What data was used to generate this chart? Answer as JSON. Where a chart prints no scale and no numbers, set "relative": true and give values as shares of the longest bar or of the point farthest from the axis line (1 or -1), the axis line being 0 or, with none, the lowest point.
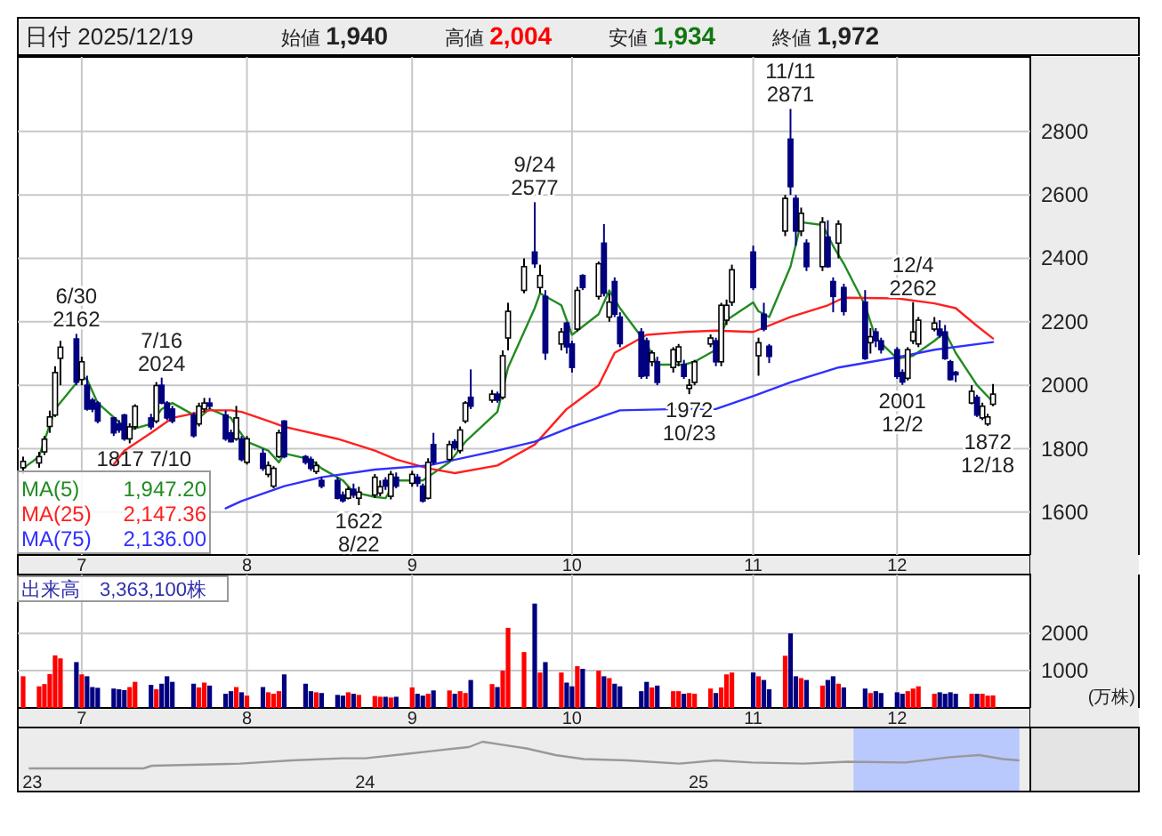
{
  "chart_data": [
    {
      "type": "other",
      "title": "日付 2025/12/19",
      "annotations": [
        "始値 1,940",
        "高値 2,004",
        "安値 1,934",
        "終値 1,972"
      ]
    },
    {
      "type": "candlestick",
      "grid": true,
      "legend": "bottom left",
      "ylim": [
        1465,
        3035
      ],
      "yticks": [
        1600,
        1800,
        2000,
        2200,
        2400,
        2600,
        2800
      ],
      "xlim": [
        "2025-06-19",
        "2025-12-26"
      ],
      "xticks": [
        {
          "value": "2025-07-01",
          "label": "7"
        },
        {
          "value": "2025-08-01",
          "label": "8"
        },
        {
          "value": "2025-09-01",
          "label": "9"
        },
        {
          "value": "2025-10-01",
          "label": "10"
        },
        {
          "value": "2025-11-04",
          "label": "11"
        },
        {
          "value": "2025-12-01",
          "label": "12"
        }
      ],
      "x": [
        "2025-06-20",
        "2025-06-23",
        "2025-06-24",
        "2025-06-25",
        "2025-06-26",
        "2025-06-27",
        "2025-06-30",
        "2025-07-01",
        "2025-07-02",
        "2025-07-03",
        "2025-07-04",
        "2025-07-07",
        "2025-07-08",
        "2025-07-09",
        "2025-07-10",
        "2025-07-11",
        "2025-07-14",
        "2025-07-15",
        "2025-07-16",
        "2025-07-17",
        "2025-07-18",
        "2025-07-22",
        "2025-07-23",
        "2025-07-24",
        "2025-07-25",
        "2025-07-28",
        "2025-07-29",
        "2025-07-30",
        "2025-07-31",
        "2025-08-01",
        "2025-08-04",
        "2025-08-05",
        "2025-08-06",
        "2025-08-07",
        "2025-08-08",
        "2025-08-12",
        "2025-08-13",
        "2025-08-14",
        "2025-08-15",
        "2025-08-18",
        "2025-08-19",
        "2025-08-20",
        "2025-08-21",
        "2025-08-22",
        "2025-08-25",
        "2025-08-26",
        "2025-08-27",
        "2025-08-28",
        "2025-08-29",
        "2025-09-01",
        "2025-09-02",
        "2025-09-03",
        "2025-09-04",
        "2025-09-05",
        "2025-09-08",
        "2025-09-09",
        "2025-09-10",
        "2025-09-11",
        "2025-09-12",
        "2025-09-16",
        "2025-09-17",
        "2025-09-18",
        "2025-09-19",
        "2025-09-22",
        "2025-09-24",
        "2025-09-25",
        "2025-09-26",
        "2025-09-29",
        "2025-09-30",
        "2025-10-01",
        "2025-10-02",
        "2025-10-03",
        "2025-10-06",
        "2025-10-07",
        "2025-10-08",
        "2025-10-09",
        "2025-10-10",
        "2025-10-14",
        "2025-10-15",
        "2025-10-16",
        "2025-10-17",
        "2025-10-20",
        "2025-10-21",
        "2025-10-22",
        "2025-10-23",
        "2025-10-24",
        "2025-10-27",
        "2025-10-28",
        "2025-10-29",
        "2025-10-30",
        "2025-10-31",
        "2025-11-04",
        "2025-11-05",
        "2025-11-06",
        "2025-11-07",
        "2025-11-10",
        "2025-11-11",
        "2025-11-12",
        "2025-11-13",
        "2025-11-14",
        "2025-11-17",
        "2025-11-18",
        "2025-11-19",
        "2025-11-20",
        "2025-11-21",
        "2025-11-25",
        "2025-11-26",
        "2025-11-27",
        "2025-11-28",
        "2025-12-01",
        "2025-12-02",
        "2025-12-03",
        "2025-12-04",
        "2025-12-05",
        "2025-12-08",
        "2025-12-09",
        "2025-12-10",
        "2025-12-11",
        "2025-12-12",
        "2025-12-15",
        "2025-12-16",
        "2025-12-17",
        "2025-12-18",
        "2025-12-19"
      ],
      "ohlc": [
        [
          1740,
          1775,
          1720,
          1760
        ],
        [
          1755,
          1790,
          1740,
          1775
        ],
        [
          1790,
          1840,
          1780,
          1830
        ],
        [
          1870,
          1920,
          1850,
          1900
        ],
        [
          1906,
          2060,
          1900,
          2040
        ],
        [
          2085,
          2140,
          2000,
          2120
        ],
        [
          2146,
          2162,
          2000,
          2010
        ],
        [
          2018,
          2090,
          2000,
          2074
        ],
        [
          2000,
          2030,
          1920,
          1925
        ],
        [
          1953,
          1960,
          1915,
          1925
        ],
        [
          1944,
          1950,
          1880,
          1887
        ],
        [
          1897,
          1900,
          1840,
          1850
        ],
        [
          1878,
          1890,
          1850,
          1859
        ],
        [
          1906,
          1910,
          1825,
          1831
        ],
        [
          1831,
          1880,
          1817,
          1869
        ],
        [
          1869,
          1940,
          1860,
          1934
        ],
        [
          1897,
          1910,
          1860,
          1869
        ],
        [
          1887,
          2010,
          1880,
          1999
        ],
        [
          2000,
          2024,
          1940,
          1944
        ],
        [
          1944,
          1950,
          1890,
          1897
        ],
        [
          1925,
          1935,
          1880,
          1887
        ],
        [
          1906,
          1915,
          1835,
          1841
        ],
        [
          1878,
          1945,
          1870,
          1934
        ],
        [
          1925,
          1960,
          1915,
          1944
        ],
        [
          1944,
          1960,
          1925,
          1934
        ],
        [
          1906,
          1920,
          1825,
          1831
        ],
        [
          1850,
          1860,
          1820,
          1822
        ],
        [
          1831,
          1935,
          1825,
          1897
        ],
        [
          1831,
          1840,
          1760,
          1766
        ],
        [
          1757,
          1840,
          1750,
          1831
        ],
        [
          1785,
          1800,
          1730,
          1738
        ],
        [
          1719,
          1760,
          1710,
          1747
        ],
        [
          1682,
          1745,
          1675,
          1738
        ],
        [
          1775,
          1860,
          1770,
          1850
        ],
        [
          1887,
          1890,
          1770,
          1775
        ],
        [
          1775,
          1780,
          1750,
          1757
        ],
        [
          1766,
          1775,
          1730,
          1738
        ],
        [
          1728,
          1760,
          1720,
          1747
        ],
        [
          1700,
          1710,
          1675,
          1682
        ],
        [
          1700,
          1710,
          1640,
          1644
        ],
        [
          1654,
          1665,
          1630,
          1636
        ],
        [
          1644,
          1680,
          1640,
          1672
        ],
        [
          1672,
          1690,
          1645,
          1654
        ],
        [
          1644,
          1680,
          1622,
          1663
        ],
        [
          1654,
          1720,
          1645,
          1710
        ],
        [
          1660,
          1700,
          1650,
          1680
        ],
        [
          1700,
          1710,
          1670,
          1682
        ],
        [
          1650,
          1730,
          1640,
          1719
        ],
        [
          1710,
          1725,
          1675,
          1682
        ],
        [
          1691,
          1730,
          1680,
          1719
        ],
        [
          1710,
          1720,
          1680,
          1691
        ],
        [
          1682,
          1690,
          1630,
          1635
        ],
        [
          1644,
          1770,
          1640,
          1757
        ],
        [
          1813,
          1850,
          1750,
          1757
        ],
        [
          1766,
          1825,
          1760,
          1813
        ],
        [
          1822,
          1830,
          1795,
          1803
        ],
        [
          1794,
          1870,
          1785,
          1859
        ],
        [
          1887,
          1950,
          1880,
          1944
        ],
        [
          1962,
          2050,
          1925,
          1934
        ],
        [
          1953,
          1985,
          1945,
          1972
        ],
        [
          1972,
          1980,
          1945,
          1953
        ],
        [
          1962,
          2110,
          1955,
          2093
        ],
        [
          2149,
          2260,
          2110,
          2233
        ],
        [
          2299,
          2400,
          2290,
          2374
        ],
        [
          2420,
          2577,
          2370,
          2383
        ],
        [
          2308,
          2380,
          2290,
          2346
        ],
        [
          2280,
          2300,
          2080,
          2102
        ],
        [
          2130,
          2180,
          2110,
          2168
        ],
        [
          2196,
          2200,
          2100,
          2121
        ],
        [
          2130,
          2140,
          2040,
          2056
        ],
        [
          2177,
          2310,
          2170,
          2299
        ],
        [
          2346,
          2350,
          2300,
          2308
        ],
        [
          2280,
          2390,
          2270,
          2383
        ],
        [
          2448,
          2508,
          2280,
          2290
        ],
        [
          2215,
          2290,
          2200,
          2262
        ],
        [
          2327,
          2340,
          2215,
          2224
        ],
        [
          2215,
          2230,
          2120,
          2131
        ],
        [
          2168,
          2180,
          2020,
          2028
        ],
        [
          2140,
          2150,
          2020,
          2030
        ],
        [
          2074,
          2110,
          2060,
          2102
        ],
        [
          2074,
          2090,
          2000,
          2009
        ],
        [
          2056,
          2120,
          2040,
          2112
        ],
        [
          2074,
          2130,
          2060,
          2121
        ],
        [
          2065,
          2080,
          2020,
          2028
        ],
        [
          1990,
          2020,
          1972,
          2000
        ],
        [
          2009,
          2080,
          2000,
          2074
        ],
        [
          2130,
          2160,
          2120,
          2149
        ],
        [
          2140,
          2150,
          2060,
          2074
        ],
        [
          2074,
          2260,
          2060,
          2252
        ],
        [
          2205,
          2270,
          2190,
          2252
        ],
        [
          2262,
          2380,
          2250,
          2364
        ],
        [
          2420,
          2440,
          2300,
          2308
        ],
        [
          2093,
          2150,
          2030,
          2134
        ],
        [
          2224,
          2260,
          2170,
          2177
        ],
        [
          2123,
          2130,
          2070,
          2091
        ],
        [
          2486,
          2600,
          2470,
          2589
        ],
        [
          2776,
          2871,
          2600,
          2626
        ],
        [
          2589,
          2600,
          2440,
          2486
        ],
        [
          2486,
          2560,
          2470,
          2542
        ],
        [
          2448,
          2460,
          2360,
          2374
        ],
        [
          2374,
          2530,
          2360,
          2514
        ],
        [
          2467,
          2520,
          2370,
          2374
        ],
        [
          2327,
          2340,
          2230,
          2280
        ],
        [
          2448,
          2520,
          2400,
          2508
        ],
        [
          2308,
          2320,
          2220,
          2233
        ],
        [
          2262,
          2300,
          2080,
          2084
        ],
        [
          2134,
          2180,
          2100,
          2153
        ],
        [
          2168,
          2180,
          2120,
          2140
        ],
        [
          2140,
          2150,
          2100,
          2112
        ],
        [
          2112,
          2120,
          2020,
          2028
        ],
        [
          2040,
          2050,
          2001,
          2010
        ],
        [
          2022,
          2120,
          2015,
          2112
        ],
        [
          2140,
          2262,
          2130,
          2168
        ],
        [
          2130,
          2215,
          2120,
          2205
        ],
        [
          2177,
          2215,
          2170,
          2196
        ],
        [
          2177,
          2205,
          2150,
          2158
        ],
        [
          2168,
          2190,
          2080,
          2084
        ],
        [
          2074,
          2080,
          2015,
          2018
        ],
        [
          2041,
          2045,
          2010,
          2033
        ],
        [
          1944,
          2000,
          1940,
          1981
        ],
        [
          1962,
          1970,
          1900,
          1906
        ],
        [
          1897,
          1945,
          1890,
          1934
        ],
        [
          1878,
          1910,
          1872,
          1900
        ],
        [
          1940,
          2004,
          1934,
          1972
        ]
      ],
      "series": [
        {
          "type": "line",
          "name": "MA(5)",
          "color": "#228b22",
          "x": [
            "2025-06-20",
            "2025-06-23",
            "2025-06-26",
            "2025-07-01",
            "2025-07-02",
            "2025-07-04",
            "2025-07-09",
            "2025-07-10",
            "2025-07-14",
            "2025-07-16",
            "2025-07-18",
            "2025-07-23",
            "2025-07-25",
            "2025-07-29",
            "2025-07-30",
            "2025-08-01",
            "2025-08-05",
            "2025-08-07",
            "2025-08-08",
            "2025-08-13",
            "2025-08-15",
            "2025-08-19",
            "2025-08-21",
            "2025-08-25",
            "2025-08-27",
            "2025-08-29",
            "2025-09-03",
            "2025-09-08",
            "2025-09-11",
            "2025-09-17",
            "2025-09-19",
            "2025-09-24",
            "2025-09-25",
            "2025-09-29",
            "2025-10-01",
            "2025-10-06",
            "2025-10-08",
            "2025-10-10",
            "2025-10-15",
            "2025-10-17",
            "2025-10-22",
            "2025-10-24",
            "2025-10-28",
            "2025-10-30",
            "2025-11-04",
            "2025-11-05",
            "2025-11-07",
            "2025-11-11",
            "2025-11-13",
            "2025-11-17",
            "2025-11-19",
            "2025-11-21",
            "2025-11-25",
            "2025-11-27",
            "2025-12-01",
            "2025-12-04",
            "2025-12-08",
            "2025-12-10",
            "2025-12-12",
            "2025-12-16",
            "2025-12-19"
          ],
          "values": [
            1738,
            1775,
            1925,
            2028,
            2018,
            1944,
            1869,
            1859,
            1878,
            1925,
            1944,
            1897,
            1925,
            1897,
            1869,
            1822,
            1794,
            1757,
            1785,
            1766,
            1738,
            1700,
            1663,
            1648,
            1644,
            1700,
            1700,
            1757,
            1822,
            1916,
            2056,
            2243,
            2290,
            2252,
            2159,
            2224,
            2299,
            2243,
            2130,
            2065,
            2065,
            2074,
            2112,
            2205,
            2261,
            2233,
            2215,
            2374,
            2514,
            2505,
            2439,
            2383,
            2252,
            2149,
            2084,
            2093,
            2140,
            2168,
            2102,
            2000,
            1947.2
          ]
        },
        {
          "type": "line",
          "name": "MA(25)",
          "color": "#ff2020",
          "x": [
            "2025-07-07",
            "2025-07-09",
            "2025-07-14",
            "2025-07-18",
            "2025-07-25",
            "2025-07-29",
            "2025-07-31",
            "2025-08-05",
            "2025-08-08",
            "2025-08-18",
            "2025-08-25",
            "2025-08-29",
            "2025-09-04",
            "2025-09-09",
            "2025-09-17",
            "2025-09-24",
            "2025-09-30",
            "2025-10-06",
            "2025-10-09",
            "2025-10-15",
            "2025-10-22",
            "2025-10-28",
            "2025-11-04",
            "2025-11-11",
            "2025-11-18",
            "2025-11-21",
            "2025-12-01",
            "2025-12-08",
            "2025-12-12",
            "2025-12-16",
            "2025-12-19"
          ],
          "values": [
            1750,
            1794,
            1850,
            1897,
            1921,
            1921,
            1916,
            1887,
            1869,
            1831,
            1794,
            1766,
            1738,
            1723,
            1747,
            1813,
            1925,
            2000,
            2102,
            2159,
            2168,
            2172,
            2168,
            2215,
            2252,
            2276,
            2274,
            2258,
            2243,
            2187,
            2147.36
          ]
        },
        {
          "type": "line",
          "name": "MA(75)",
          "color": "#3030ff",
          "x": [
            "2025-07-28",
            "2025-07-31",
            "2025-08-08",
            "2025-08-15",
            "2025-08-25",
            "2025-09-04",
            "2025-09-17",
            "2025-09-24",
            "2025-10-01",
            "2025-10-10",
            "2025-10-21",
            "2025-10-28",
            "2025-11-04",
            "2025-11-11",
            "2025-11-20",
            "2025-12-01",
            "2025-12-08",
            "2025-12-19"
          ],
          "values": [
            1612,
            1635,
            1682,
            1710,
            1734,
            1747,
            1794,
            1822,
            1869,
            1921,
            1925,
            1925,
            1966,
            2009,
            2056,
            2088,
            2112,
            2136
          ]
        }
      ],
      "annotations": [
        {
          "text": "6/30\n2162",
          "x": "2025-06-30",
          "y": 2162
        },
        {
          "text": "1817\n7/10",
          "x": "2025-07-10",
          "y": 1817
        },
        {
          "text": "7/16\n2024",
          "x": "2025-07-16",
          "y": 2024
        },
        {
          "text": "1622\n8/22",
          "x": "2025-08-22",
          "y": 1622
        },
        {
          "text": "9/24\n2577",
          "x": "2025-09-24",
          "y": 2577
        },
        {
          "text": "1972\n10/23",
          "x": "2025-10-23",
          "y": 1972
        },
        {
          "text": "11/11\n2871",
          "x": "2025-11-11",
          "y": 2871
        },
        {
          "text": "2001\n12/2",
          "x": "2025-12-02",
          "y": 2001
        },
        {
          "text": "12/4\n2262",
          "x": "2025-12-04",
          "y": 2262
        },
        {
          "text": "1872\n12/18",
          "x": "2025-12-18",
          "y": 1872
        },
        "1,947.20",
        "2,147.36",
        "2,136.00"
      ]
    },
    {
      "type": "bar",
      "title": "出来高　3,363,100株",
      "ylabel": "(万株)",
      "grid": true,
      "ylim": [
        0,
        3580
      ],
      "yticks": [
        1000,
        2000
      ],
      "xlim": [
        "2025-06-19",
        "2025-12-26"
      ],
      "xticks": [
        {
          "value": "2025-07-01",
          "label": "7"
        },
        {
          "value": "2025-08-01",
          "label": "8"
        },
        {
          "value": "2025-09-01",
          "label": "9"
        },
        {
          "value": "2025-10-01",
          "label": "10"
        },
        {
          "value": "2025-11-04",
          "label": "11"
        },
        {
          "value": "2025-12-01",
          "label": "12"
        }
      ],
      "x": [
        "2025-06-20",
        "2025-06-23",
        "2025-06-24",
        "2025-06-25",
        "2025-06-26",
        "2025-06-27",
        "2025-06-30",
        "2025-07-01",
        "2025-07-02",
        "2025-07-03",
        "2025-07-04",
        "2025-07-07",
        "2025-07-08",
        "2025-07-09",
        "2025-07-10",
        "2025-07-11",
        "2025-07-14",
        "2025-07-15",
        "2025-07-16",
        "2025-07-17",
        "2025-07-18",
        "2025-07-22",
        "2025-07-23",
        "2025-07-24",
        "2025-07-25",
        "2025-07-28",
        "2025-07-29",
        "2025-07-30",
        "2025-07-31",
        "2025-08-01",
        "2025-08-04",
        "2025-08-05",
        "2025-08-06",
        "2025-08-07",
        "2025-08-08",
        "2025-08-12",
        "2025-08-13",
        "2025-08-14",
        "2025-08-15",
        "2025-08-18",
        "2025-08-19",
        "2025-08-20",
        "2025-08-21",
        "2025-08-22",
        "2025-08-25",
        "2025-08-26",
        "2025-08-27",
        "2025-08-28",
        "2025-08-29",
        "2025-09-01",
        "2025-09-02",
        "2025-09-03",
        "2025-09-04",
        "2025-09-05",
        "2025-09-08",
        "2025-09-09",
        "2025-09-10",
        "2025-09-11",
        "2025-09-12",
        "2025-09-16",
        "2025-09-17",
        "2025-09-18",
        "2025-09-19",
        "2025-09-22",
        "2025-09-24",
        "2025-09-25",
        "2025-09-26",
        "2025-09-29",
        "2025-09-30",
        "2025-10-01",
        "2025-10-02",
        "2025-10-03",
        "2025-10-06",
        "2025-10-07",
        "2025-10-08",
        "2025-10-09",
        "2025-10-10",
        "2025-10-14",
        "2025-10-15",
        "2025-10-16",
        "2025-10-17",
        "2025-10-20",
        "2025-10-21",
        "2025-10-22",
        "2025-10-23",
        "2025-10-24",
        "2025-10-27",
        "2025-10-28",
        "2025-10-29",
        "2025-10-30",
        "2025-10-31",
        "2025-11-04",
        "2025-11-05",
        "2025-11-06",
        "2025-11-07",
        "2025-11-10",
        "2025-11-11",
        "2025-11-12",
        "2025-11-13",
        "2025-11-14",
        "2025-11-17",
        "2025-11-18",
        "2025-11-19",
        "2025-11-20",
        "2025-11-21",
        "2025-11-25",
        "2025-11-26",
        "2025-11-27",
        "2025-11-28",
        "2025-12-01",
        "2025-12-02",
        "2025-12-03",
        "2025-12-04",
        "2025-12-05",
        "2025-12-08",
        "2025-12-09",
        "2025-12-10",
        "2025-12-11",
        "2025-12-12",
        "2025-12-15",
        "2025-12-16",
        "2025-12-17",
        "2025-12-18",
        "2025-12-19"
      ],
      "values": [
        850,
        580,
        640,
        910,
        1410,
        1330,
        1230,
        900,
        850,
        560,
        540,
        520,
        500,
        480,
        560,
        700,
        620,
        500,
        650,
        850,
        700,
        650,
        550,
        680,
        600,
        380,
        450,
        560,
        420,
        330,
        560,
        420,
        380,
        450,
        900,
        650,
        450,
        420,
        400,
        350,
        330,
        420,
        380,
        350,
        320,
        300,
        300,
        280,
        300,
        550,
        380,
        330,
        380,
        470,
        470,
        380,
        450,
        400,
        750,
        640,
        560,
        1000,
        2150,
        1500,
        2800,
        950,
        1230,
        950,
        680,
        580,
        1120,
        1050,
        1000,
        850,
        800,
        650,
        580,
        450,
        700,
        550,
        600,
        450,
        450,
        380,
        400,
        380,
        520,
        400,
        550,
        900,
        950,
        950,
        850,
        750,
        500,
        1400,
        2000,
        850,
        800,
        750,
        600,
        750,
        850,
        650,
        550,
        520,
        400,
        450,
        400,
        420,
        380,
        450,
        520,
        580,
        380,
        420,
        380,
        420,
        380,
        380,
        380,
        380,
        330,
        336.31
      ],
      "colors": [
        "#ff0000",
        "#ff0000",
        "#ff0000",
        "#ff0000",
        "#ff0000",
        "#ff0000",
        "#000080",
        "#ff0000",
        "#000080",
        "#000080",
        "#000080",
        "#000080",
        "#000080",
        "#000080",
        "#ff0000",
        "#ff0000",
        "#000080",
        "#ff0000",
        "#000080",
        "#000080",
        "#000080",
        "#000080",
        "#ff0000",
        "#ff0000",
        "#000080",
        "#000080",
        "#000080",
        "#ff0000",
        "#000080",
        "#ff0000",
        "#000080",
        "#ff0000",
        "#ff0000",
        "#ff0000",
        "#000080",
        "#000080",
        "#000080",
        "#ff0000",
        "#000080",
        "#000080",
        "#000080",
        "#ff0000",
        "#000080",
        "#ff0000",
        "#ff0000",
        "#ff0000",
        "#000080",
        "#ff0000",
        "#000080",
        "#ff0000",
        "#000080",
        "#000080",
        "#ff0000",
        "#000080",
        "#ff0000",
        "#000080",
        "#ff0000",
        "#ff0000",
        "#000080",
        "#ff0000",
        "#000080",
        "#ff0000",
        "#ff0000",
        "#ff0000",
        "#000080",
        "#ff0000",
        "#000080",
        "#ff0000",
        "#000080",
        "#000080",
        "#ff0000",
        "#000080",
        "#ff0000",
        "#000080",
        "#ff0000",
        "#000080",
        "#000080",
        "#000080",
        "#000080",
        "#ff0000",
        "#000080",
        "#ff0000",
        "#ff0000",
        "#000080",
        "#ff0000",
        "#ff0000",
        "#ff0000",
        "#000080",
        "#ff0000",
        "#ff0000",
        "#ff0000",
        "#000080",
        "#ff0000",
        "#000080",
        "#000080",
        "#ff0000",
        "#000080",
        "#000080",
        "#ff0000",
        "#000080",
        "#ff0000",
        "#000080",
        "#000080",
        "#ff0000",
        "#000080",
        "#000080",
        "#ff0000",
        "#000080",
        "#000080",
        "#000080",
        "#000080",
        "#ff0000",
        "#ff0000",
        "#ff0000",
        "#ff0000",
        "#000080",
        "#000080",
        "#000080",
        "#000080",
        "#ff0000",
        "#000080",
        "#ff0000",
        "#ff0000",
        "#ff0000"
      ]
    },
    {
      "type": "line",
      "relative": true,
      "color": "#999999",
      "xlim": [
        "2022-12-16",
        "2025-12-31"
      ],
      "xticks": [
        {
          "value": "2023-01-01",
          "label": "23"
        },
        {
          "value": "2024-01-01",
          "label": "24"
        },
        {
          "value": "2025-01-01",
          "label": "25"
        }
      ],
      "x": [
        "2022-12-28",
        "2023-05-03",
        "2023-05-12",
        "2023-08-17",
        "2023-10-12",
        "2023-12-08",
        "2024-01-01",
        "2024-02-17",
        "2024-03-22",
        "2024-04-24",
        "2024-05-09",
        "2024-06-01",
        "2024-06-26",
        "2024-07-28",
        "2024-08-28",
        "2024-10-15",
        "2024-12-11",
        "2025-01-20",
        "2025-03-01",
        "2025-04-26",
        "2025-06-13",
        "2025-08-16",
        "2025-10-04",
        "2025-11-05",
        "2025-12-01",
        "2025-12-19"
      ],
      "values": [
        0,
        0,
        0.1,
        0.18,
        0.3,
        0.38,
        0.38,
        0.55,
        0.68,
        0.8,
        1,
        0.88,
        0.75,
        0.5,
        0.35,
        0.3,
        0.18,
        0.3,
        0.22,
        0.18,
        0.25,
        0.22,
        0.42,
        0.5,
        0.35,
        0.3
      ],
      "bands": [
        {
          "axis": "x",
          "from": "2025-06-20",
          "to": "2025-12-19",
          "color": "#b4c4ff"
        }
      ]
    }
  ]
}
